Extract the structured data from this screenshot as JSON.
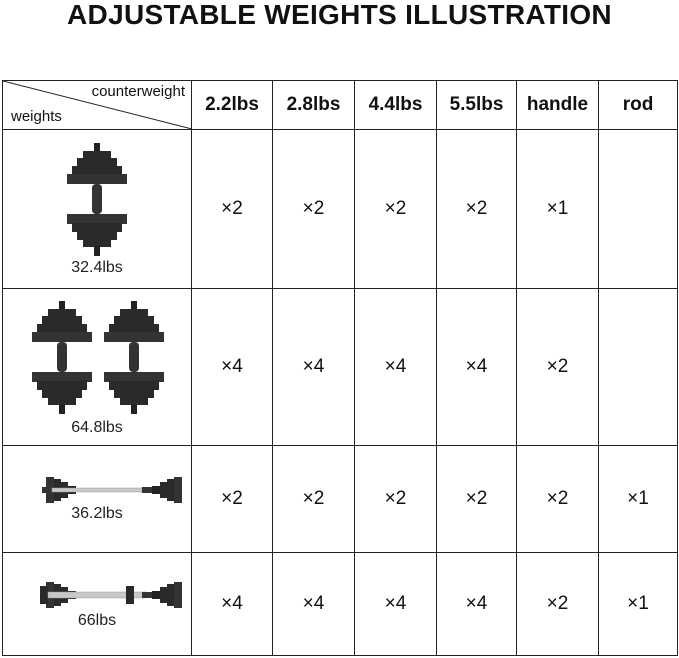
{
  "title": "ADJUSTABLE WEIGHTS ILLUSTRATION",
  "header": {
    "counterweight_label": "counterweight",
    "weights_label": "weights",
    "columns": [
      "2.2lbs",
      "2.8lbs",
      "4.4lbs",
      "5.5lbs",
      "handle",
      "rod"
    ]
  },
  "rows": [
    {
      "weight": "32.4lbs",
      "image": "single-dumbbell",
      "counts": [
        "×2",
        "×2",
        "×2",
        "×2",
        "×1",
        ""
      ]
    },
    {
      "weight": "64.8lbs",
      "image": "pair-of-dumbbells",
      "counts": [
        "×4",
        "×4",
        "×4",
        "×4",
        "×2",
        ""
      ]
    },
    {
      "weight": "36.2lbs",
      "image": "barbell",
      "counts": [
        "×2",
        "×2",
        "×2",
        "×2",
        "×2",
        "×1"
      ]
    },
    {
      "weight": "66lbs",
      "image": "barbell-heavy",
      "counts": [
        "×4",
        "×4",
        "×4",
        "×4",
        "×2",
        "×1"
      ]
    }
  ]
}
